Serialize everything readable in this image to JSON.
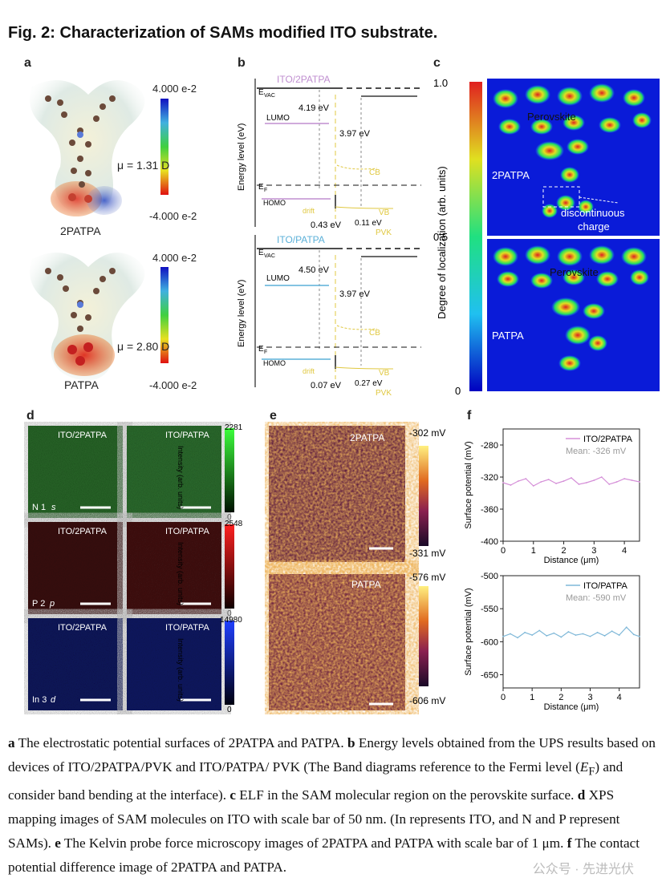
{
  "title": "Fig. 2: Characterization of SAMs modified ITO substrate.",
  "panel_labels": {
    "a": "a",
    "b": "b",
    "c": "c",
    "d": "d",
    "e": "e",
    "f": "f"
  },
  "panel_a": {
    "colorbar_max": "4.000 e-2",
    "colorbar_min": "-4.000 e-2",
    "mol1_mu": "μ = 1.31 D",
    "mol1_name": "2PATPA",
    "mol2_mu": "μ = 2.80 D",
    "mol2_name": "PATPA"
  },
  "panel_b": {
    "ylabel": "Energy level (eV)",
    "top": {
      "title": "ITO/2PATPA",
      "evac": "E",
      "evac_sub": "VAC",
      "wf": "4.19 eV",
      "lumo": "LUMO",
      "gap": "3.97 eV",
      "cb": "CB",
      "ef": "E",
      "ef_sub": "F",
      "homo": "HOMO",
      "drift": "drift",
      "vb": "VB",
      "offset": "0.43 eV",
      "bend": "0.11 eV",
      "pvk": "PVK"
    },
    "bottom": {
      "title": "ITO/PATPA",
      "evac": "E",
      "evac_sub": "VAC",
      "wf": "4.50 eV",
      "lumo": "LUMO",
      "gap": "3.97 eV",
      "cb": "CB",
      "ef": "E",
      "ef_sub": "F",
      "homo": "HOMO",
      "drift": "drift",
      "vb": "VB",
      "offset": "0.07 eV",
      "bend": "0.27 eV",
      "pvk": "PVK"
    }
  },
  "panel_c": {
    "ylabel": "Degree of localization (arb. units)",
    "ticks": [
      "1.0",
      "0.5",
      "0"
    ],
    "top_labels": {
      "perovskite": "Perovskite",
      "sam": "2PATPA",
      "note_line1": "discontinuous",
      "note_line2": "charge"
    },
    "bottom_labels": {
      "perovskite": "Perovskite",
      "sam": "PATPA"
    }
  },
  "panel_d": {
    "row1": {
      "left": "ITO/2PATPA",
      "right": "ITO/PATPA",
      "element": "N 1",
      "orbital": "s",
      "max": "2281",
      "min": "0",
      "color": "#3cc03c"
    },
    "row2": {
      "left": "ITO/2PATPA",
      "right": "ITO/PATPA",
      "element": "P 2",
      "orbital": "p",
      "max": "2548",
      "min": "0",
      "color": "#e02020"
    },
    "row3": {
      "left": "ITO/2PATPA",
      "right": "ITO/PATPA",
      "element": "In 3",
      "orbital": "d",
      "max": "14980",
      "min": "0",
      "color": "#2030e0"
    },
    "cbar_label": "Intensity (arb. units)"
  },
  "panel_e": {
    "top": {
      "label": "2PATPA",
      "max": "-302 mV",
      "min": "-331 mV"
    },
    "bottom": {
      "label": "PATPA",
      "max": "-576 mV",
      "min": "-606 mV"
    }
  },
  "chart_data": [
    {
      "type": "line",
      "xlabel": "Distance (μm)",
      "ylabel": "Surface potential (mV)",
      "xlim": [
        0,
        4.5
      ],
      "ylim": [
        -400,
        -260
      ],
      "xticks": [
        "0",
        "1",
        "2",
        "3",
        "4"
      ],
      "yticks": [
        "-280",
        "-320",
        "-360",
        "-400"
      ],
      "legend": "ITO/2PATPA",
      "mean_text": "Mean: -326 mV",
      "color": "#d58fd8",
      "series": [
        {
          "name": "ITO/2PATPA",
          "x": [
            0,
            0.25,
            0.5,
            0.75,
            1,
            1.25,
            1.5,
            1.75,
            2,
            2.25,
            2.5,
            2.75,
            3,
            3.25,
            3.5,
            3.75,
            4,
            4.25,
            4.5
          ],
          "values": [
            -327,
            -330,
            -325,
            -322,
            -331,
            -326,
            -323,
            -328,
            -325,
            -321,
            -329,
            -327,
            -324,
            -320,
            -329,
            -326,
            -322,
            -324,
            -326
          ]
        }
      ]
    },
    {
      "type": "line",
      "xlabel": "Distance (μm)",
      "ylabel": "Surface potential (mV)",
      "xlim": [
        0,
        4.7
      ],
      "ylim": [
        -670,
        -500
      ],
      "xticks": [
        "0",
        "1",
        "2",
        "3",
        "4"
      ],
      "yticks": [
        "-500",
        "-550",
        "-600",
        "-650"
      ],
      "legend": "ITO/PATPA",
      "mean_text": "Mean: -590 mV",
      "color": "#7fb8d8",
      "series": [
        {
          "name": "ITO/PATPA",
          "x": [
            0,
            0.25,
            0.5,
            0.75,
            1,
            1.25,
            1.5,
            1.75,
            2,
            2.25,
            2.5,
            2.75,
            3,
            3.25,
            3.5,
            3.75,
            4,
            4.25,
            4.5,
            4.7
          ],
          "values": [
            -592,
            -588,
            -594,
            -586,
            -590,
            -583,
            -591,
            -587,
            -593,
            -585,
            -590,
            -588,
            -592,
            -586,
            -591,
            -584,
            -590,
            -578,
            -589,
            -592
          ]
        }
      ]
    }
  ],
  "caption": {
    "a_bold": "a",
    "a_text": " The electrostatic potential surfaces of 2PATPA and PATPA. ",
    "b_bold": "b",
    "b_text1": " Energy levels obtained from the UPS results based on devices of ITO/2PATPA/PVK and ITO/PATPA/ PVK (The Band diagrams reference to the Fermi level (",
    "b_ef": "E",
    "b_ef_sub": "F",
    "b_text2": ") and consider band bending at the interface). ",
    "c_bold": "c",
    "c_text": " ELF in the SAM molecular region on the perovskite surface. ",
    "d_bold": "d",
    "d_text": " XPS mapping images of SAM molecules on ITO with scale bar of 50 nm. (In represents ITO, and N and P represent SAMs). ",
    "e_bold": "e",
    "e_text": " The Kelvin probe force microscopy images of 2PATPA and PATPA with scale bar of 1 μm. ",
    "f_bold": "f",
    "f_text": " The contact potential difference image of 2PATPA and PATPA."
  },
  "watermark": "公众号 · 先进光伏"
}
